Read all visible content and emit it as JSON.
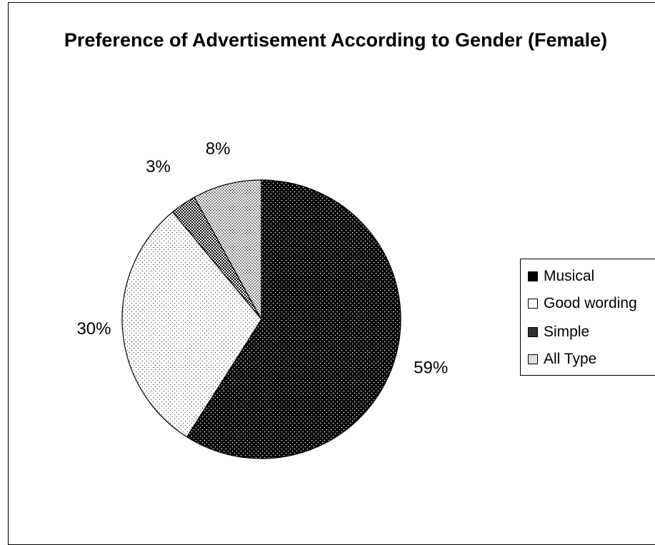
{
  "chart_data": {
    "type": "pie",
    "title": "Preference of Advertisement According to Gender (Female)",
    "categories": [
      "Musical",
      "Good wording",
      "Simple",
      "All Type"
    ],
    "values": [
      59,
      30,
      3,
      8
    ],
    "labels": [
      "59%",
      "30%",
      "3%",
      "8%"
    ],
    "legend_position": "right"
  }
}
